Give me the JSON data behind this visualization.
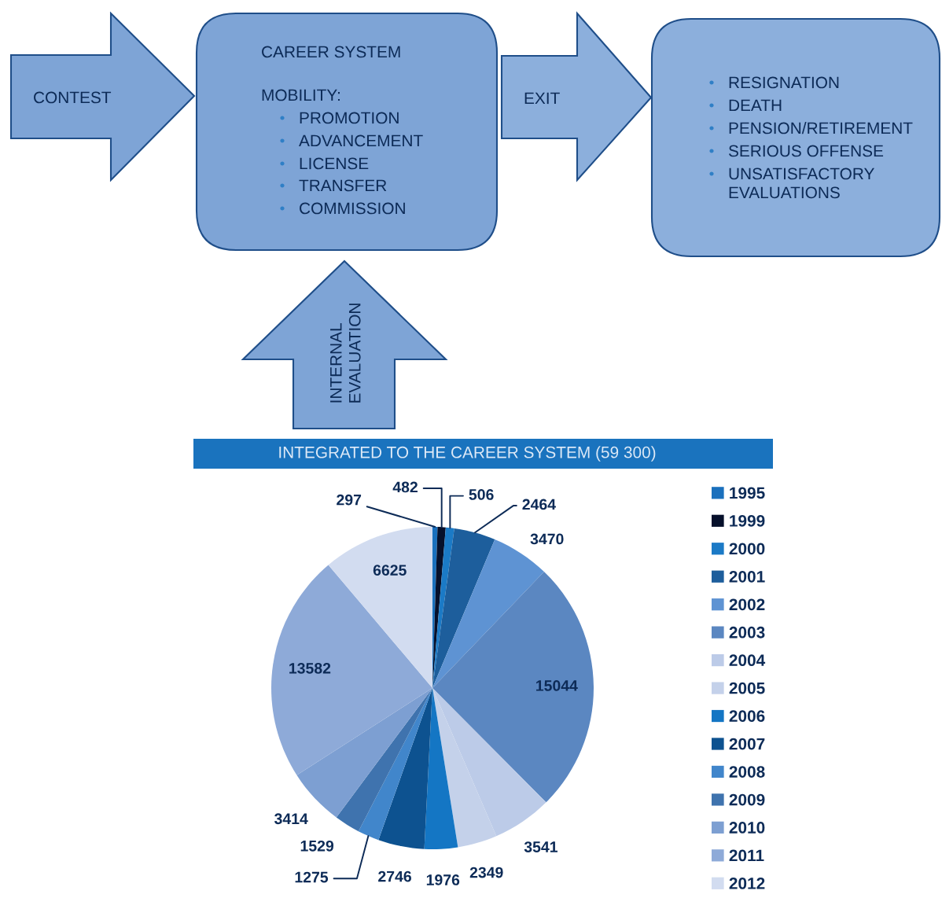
{
  "chart_data": [
    {
      "type": "other",
      "annotations": [
        "CONTEST",
        "CAREER SYSTEM",
        "MOBILITY:",
        "PROMOTION",
        "ADVANCEMENT",
        "LICENSE",
        "TRANSFER",
        "COMMISSION",
        "EXIT",
        "RESIGNATION",
        "DEATH",
        "PENSION/RETIREMENT",
        "SERIOUS OFFENSE",
        "UNSATISFACTORY\nEVALUATIONS",
        "INTERNAL\nEVALUATION"
      ]
    },
    {
      "type": "pie",
      "title": "INTEGRATED TO THE CAREER SYSTEM (59 300)",
      "categories": [
        "1995",
        "1999",
        "2000",
        "2001",
        "2002",
        "2003",
        "2004",
        "2005",
        "2006",
        "2007",
        "2008",
        "2009",
        "2010",
        "2011",
        "2012"
      ],
      "values": [
        297,
        482,
        506,
        2464,
        3470,
        15044,
        3541,
        2349,
        1976,
        2746,
        1275,
        1529,
        3414,
        13582,
        6625
      ],
      "colors": [
        "#1a70bd",
        "#06102b",
        "#1b7ac6",
        "#1d5e9c",
        "#5e93d3",
        "#5b87c1",
        "#bccbe8",
        "#c4d1ea",
        "#1476c4",
        "#0d5290",
        "#4186cb",
        "#3f73ae",
        "#7d9fd2",
        "#8eaad8",
        "#d2dcf0"
      ],
      "data_labels": true,
      "legend": "right"
    }
  ]
}
